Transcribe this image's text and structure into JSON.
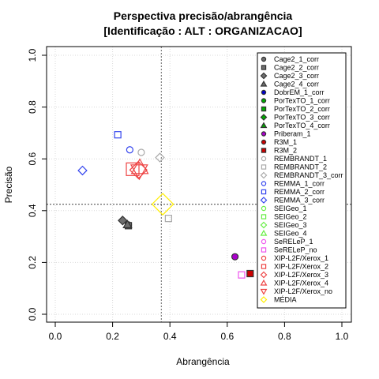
{
  "chart_data": {
    "type": "scatter",
    "title_line1": "Perspectiva precisão/abrangência",
    "title_line2": "[Identificação : ALT : ORGANIZACAO]",
    "xlabel": "Abrangência",
    "ylabel": "Precisão",
    "xlim": [
      0,
      1
    ],
    "ylim": [
      0,
      1
    ],
    "xticks": [
      "0.0",
      "0.2",
      "0.4",
      "0.6",
      "0.8",
      "1.0"
    ],
    "yticks": [
      "0.0",
      "0.2",
      "0.4",
      "0.6",
      "0.8",
      "1.0"
    ],
    "grid": true,
    "legend_position": "right",
    "reference_lines": {
      "x": 0.37,
      "y": 0.425
    },
    "series": [
      {
        "name": "Cage2_1_corr",
        "shape": "circle",
        "color": "#6e6e6e",
        "filled": true,
        "x": 0.255,
        "y": 0.345
      },
      {
        "name": "Cage2_2_corr",
        "shape": "square",
        "color": "#6e6e6e",
        "filled": true,
        "x": 0.255,
        "y": 0.342
      },
      {
        "name": "Cage2_3_corr",
        "shape": "diamond",
        "color": "#6e6e6e",
        "filled": true,
        "x": 0.235,
        "y": 0.362
      },
      {
        "name": "Cage2_4_corr",
        "shape": "triangle",
        "color": "#6e6e6e",
        "filled": true,
        "x": 0.252,
        "y": 0.346
      },
      {
        "name": "DobrEM_1_corr",
        "shape": "circle",
        "color": "#0000cc",
        "filled": true
      },
      {
        "name": "PorTexTO_1_corr",
        "shape": "circle",
        "color": "#00aa00",
        "filled": true
      },
      {
        "name": "PorTexTO_2_corr",
        "shape": "square",
        "color": "#00aa00",
        "filled": true
      },
      {
        "name": "PorTexTO_3_corr",
        "shape": "diamond",
        "color": "#00aa00",
        "filled": true
      },
      {
        "name": "PorTexTO_4_corr",
        "shape": "triangle",
        "color": "#00aa00",
        "filled": true
      },
      {
        "name": "Priberam_1",
        "shape": "circle",
        "color": "#aa00cc",
        "filled": true,
        "x": 0.627,
        "y": 0.222
      },
      {
        "name": "R3M_1",
        "shape": "circle",
        "color": "#cc0000",
        "filled": true
      },
      {
        "name": "R3M_2",
        "shape": "square",
        "color": "#cc0000",
        "filled": true,
        "x": 0.68,
        "y": 0.157
      },
      {
        "name": "REMBRANDT_1",
        "shape": "circle",
        "color": "#aaaaaa",
        "filled": false,
        "x": 0.3,
        "y": 0.625
      },
      {
        "name": "REMBRANDT_2",
        "shape": "square",
        "color": "#aaaaaa",
        "filled": false,
        "x": 0.395,
        "y": 0.37
      },
      {
        "name": "REMBRANDT_3_corr",
        "shape": "diamond",
        "color": "#aaaaaa",
        "filled": false,
        "x": 0.365,
        "y": 0.605
      },
      {
        "name": "REMMA_1_corr",
        "shape": "circle",
        "color": "#3344ee",
        "filled": false,
        "x": 0.26,
        "y": 0.635
      },
      {
        "name": "REMMA_2_corr",
        "shape": "square",
        "color": "#3344ee",
        "filled": false,
        "x": 0.218,
        "y": 0.693
      },
      {
        "name": "REMMA_3_corr",
        "shape": "diamond",
        "color": "#3344ee",
        "filled": false,
        "x": 0.095,
        "y": 0.555
      },
      {
        "name": "SEIGeo_1",
        "shape": "circle",
        "color": "#66ee44",
        "filled": false
      },
      {
        "name": "SEIGeo_2",
        "shape": "square",
        "color": "#66ee44",
        "filled": false
      },
      {
        "name": "SEIGeo_3",
        "shape": "diamond",
        "color": "#66ee44",
        "filled": false
      },
      {
        "name": "SEIGeo_4",
        "shape": "triangle",
        "color": "#66ee44",
        "filled": false
      },
      {
        "name": "SeRELeP_1",
        "shape": "circle",
        "color": "#ee55ee",
        "filled": false
      },
      {
        "name": "SeRELeP_no",
        "shape": "square",
        "color": "#ee55ee",
        "filled": false,
        "x": 0.65,
        "y": 0.152
      },
      {
        "name": "XIP-L2F/Xerox_1",
        "shape": "circle",
        "color": "#ee4444",
        "filled": false
      },
      {
        "name": "XIP-L2F/Xerox_2",
        "shape": "square",
        "color": "#ee4444",
        "filled": false,
        "x": 0.27,
        "y": 0.56,
        "big": true
      },
      {
        "name": "XIP-L2F/Xerox_3",
        "shape": "diamond",
        "color": "#ee4444",
        "filled": false,
        "x": 0.29,
        "y": 0.557,
        "big": true
      },
      {
        "name": "XIP-L2F/Xerox_4",
        "shape": "triangle",
        "color": "#ee4444",
        "filled": false,
        "x": 0.295,
        "y": 0.567,
        "big": true
      },
      {
        "name": "XIP-L2F/Xerox_no",
        "shape": "triangle-down",
        "color": "#ee4444",
        "filled": false,
        "x": 0.293,
        "y": 0.553,
        "big": true
      },
      {
        "name": "MÉDIA",
        "shape": "diamond",
        "color": "#ffee00",
        "filled": false,
        "x": 0.375,
        "y": 0.425,
        "big": true,
        "huge": true
      }
    ]
  }
}
